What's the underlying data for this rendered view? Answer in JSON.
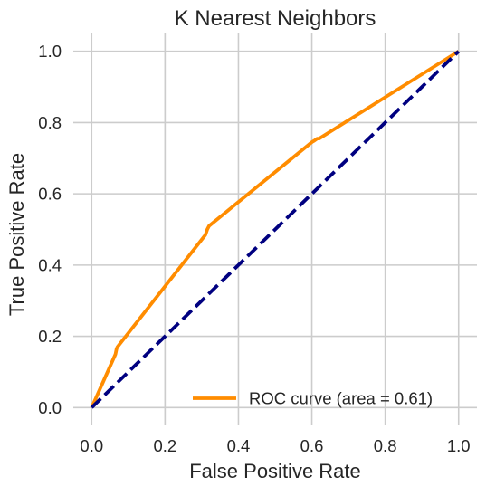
{
  "chart_data": {
    "type": "line",
    "title": "K Nearest Neighbors",
    "xlabel": "False Positive Rate",
    "ylabel": "True Positive Rate",
    "xlim": [
      -0.05,
      1.05
    ],
    "ylim": [
      -0.05,
      1.05
    ],
    "xticks": [
      "0.0",
      "0.2",
      "0.4",
      "0.6",
      "0.8",
      "1.0"
    ],
    "yticks": [
      "0.0",
      "0.2",
      "0.4",
      "0.6",
      "0.8",
      "1.0"
    ],
    "grid": true,
    "legend_position": "lower right",
    "series": [
      {
        "name": "ROC curve (area = 0.61)",
        "color": "#ff8c00",
        "line_style": "solid",
        "x": [
          0.0,
          0.065,
          0.068,
          0.07,
          0.31,
          0.315,
          0.32,
          0.6,
          0.605,
          0.615,
          0.62,
          1.0
        ],
        "y": [
          0.0,
          0.15,
          0.165,
          0.17,
          0.485,
          0.5,
          0.51,
          0.745,
          0.748,
          0.755,
          0.755,
          1.0
        ]
      },
      {
        "color": "#000080",
        "line_style": "dashed",
        "x": [
          0.0,
          1.0
        ],
        "y": [
          0.0,
          1.0
        ]
      }
    ]
  }
}
